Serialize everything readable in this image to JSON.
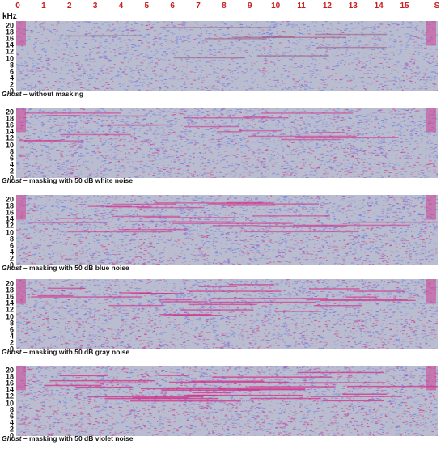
{
  "time_axis": {
    "ticks": [
      "0",
      "1",
      "2",
      "3",
      "4",
      "5",
      "6",
      "7",
      "8",
      "9",
      "10",
      "11",
      "12",
      "13",
      "14",
      "15"
    ],
    "unit": "S"
  },
  "freq_axis": {
    "unit": "kHz",
    "ticks": [
      "20",
      "18",
      "16",
      "14",
      "12",
      "10",
      "8",
      "6",
      "4",
      "2",
      "0"
    ]
  },
  "panels": [
    {
      "title": "Ghost",
      "subtitle": " – without masking",
      "noise": "none"
    },
    {
      "title": "Ghost",
      "subtitle": " – masking with 50 dB white noise",
      "noise": "white"
    },
    {
      "title": "Ghost",
      "subtitle": " – masking with 50 dB blue noise",
      "noise": "blue"
    },
    {
      "title": "Ghost",
      "subtitle": " – masking with 50 dB gray noise",
      "noise": "gray"
    },
    {
      "title": "Ghost",
      "subtitle": " – masking with 50 dB violet noise",
      "noise": "violet"
    }
  ],
  "colors": {
    "background": "#b9bdcf",
    "noise_blue": "#6a78e6",
    "noise_magenta": "#d2348e",
    "axis_red": "#c81e1e"
  }
}
